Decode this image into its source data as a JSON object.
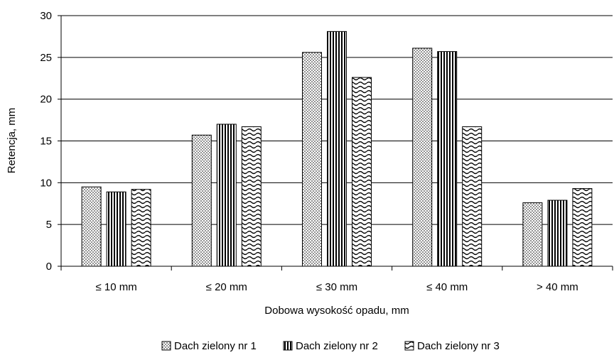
{
  "chart_data": {
    "type": "bar",
    "title": "",
    "xlabel": "Dobowa wysokość opadu, mm",
    "ylabel": "Retencja, mm",
    "categories": [
      "≤ 10 mm",
      "≤ 20 mm",
      "≤ 30 mm",
      "≤ 40 mm",
      "> 40 mm"
    ],
    "series": [
      {
        "name": "Dach zielony nr 1",
        "pattern": "dots",
        "values": [
          9.5,
          15.7,
          25.6,
          26.1,
          7.6
        ]
      },
      {
        "name": "Dach zielony nr 2",
        "pattern": "vertical-stripes",
        "values": [
          8.9,
          17.0,
          28.1,
          25.7,
          7.9
        ]
      },
      {
        "name": "Dach zielony nr 3",
        "pattern": "waves",
        "values": [
          9.2,
          16.7,
          22.6,
          16.7,
          9.3
        ]
      }
    ],
    "ylim": [
      0,
      30
    ],
    "yticks": [
      0,
      5,
      10,
      15,
      20,
      25,
      30
    ],
    "grid": true,
    "legend_position": "bottom",
    "colors": {
      "bar_stroke": "#000000",
      "gridline": "#000000",
      "background": "#ffffff"
    }
  }
}
